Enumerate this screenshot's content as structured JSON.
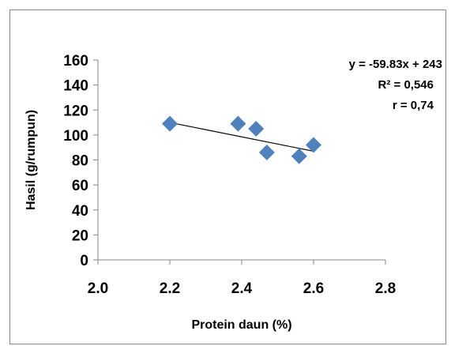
{
  "chart_data": {
    "type": "scatter",
    "xlabel": "Protein daun (%)",
    "ylabel": "Hasil (g/rumpun)",
    "xlim": [
      2.0,
      2.8
    ],
    "ylim": [
      0,
      160
    ],
    "x_ticks": [
      "2.0",
      "2.2",
      "2.4",
      "2.6",
      "2.8"
    ],
    "y_ticks": [
      "0",
      "20",
      "40",
      "60",
      "80",
      "100",
      "120",
      "140",
      "160"
    ],
    "grid": false,
    "legend": "none",
    "marker": "diamond",
    "marker_color": "#4f81bd",
    "trendline_color": "#000000",
    "points": [
      {
        "x": 2.2,
        "y": 109
      },
      {
        "x": 2.39,
        "y": 109
      },
      {
        "x": 2.44,
        "y": 105
      },
      {
        "x": 2.47,
        "y": 86
      },
      {
        "x": 2.56,
        "y": 83
      },
      {
        "x": 2.6,
        "y": 92
      }
    ],
    "trendline": {
      "x_start": 2.2,
      "y_start": 110,
      "x_end": 2.6,
      "y_end": 87
    },
    "annotations": [
      "y = -59.83x + 243",
      "R² = 0,546",
      "r = 0,74"
    ]
  }
}
